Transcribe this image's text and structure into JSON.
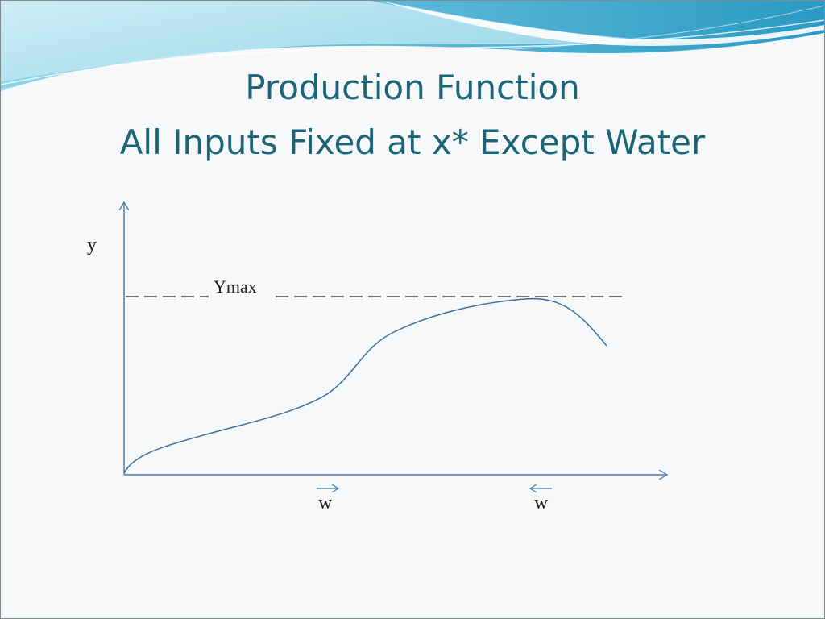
{
  "slide": {
    "title_line_1": "Production Function",
    "title_line_2": "All Inputs Fixed at x* Except Water"
  },
  "graph": {
    "y_axis_label": "y",
    "ymax_label": "Ymax",
    "w_label_left": "w",
    "w_label_right": "w",
    "w_arrow_left_direction": "right",
    "w_arrow_right_direction": "left"
  },
  "colors": {
    "title": "#1c6576",
    "axis": "#4a7fb0",
    "curve": "#3c6f9e",
    "label": "#222222",
    "banner_light": "#bfe6f2",
    "banner_mid": "#7fcde3",
    "banner_dark": "#2b9ac2"
  }
}
